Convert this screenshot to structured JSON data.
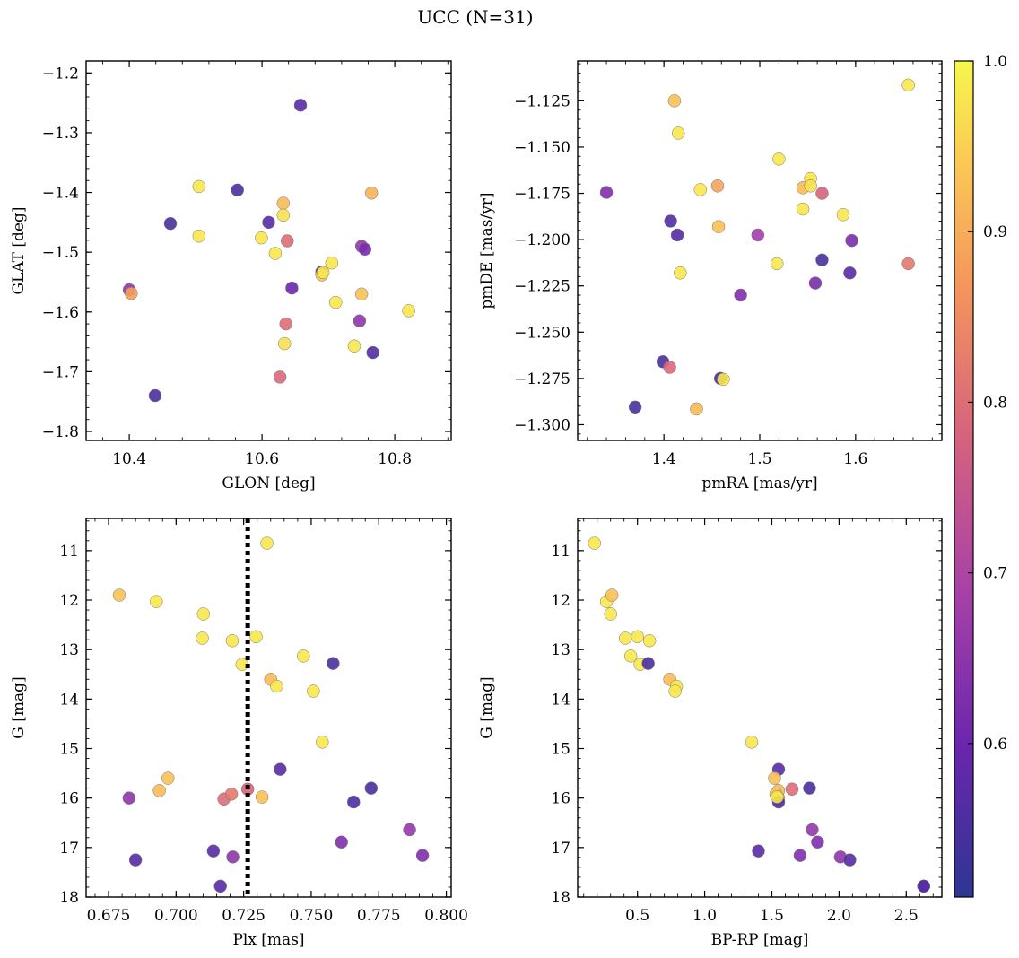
{
  "title": "UCC (N=31)",
  "colorbar": {
    "range": [
      0.51,
      1.0
    ],
    "ticks": [
      0.6,
      0.7,
      0.8,
      0.9,
      1.0
    ],
    "tick_labels": [
      "0.6",
      "0.7",
      "0.8",
      "0.9",
      "1.0"
    ],
    "colormap": "plasma"
  },
  "chart_data": [
    {
      "type": "scatter",
      "name": "glon-glat",
      "xlabel": "GLON [deg]",
      "ylabel": "GLAT [deg]",
      "xlim": [
        10.335,
        10.885
      ],
      "ylim": [
        -1.815,
        -1.18
      ],
      "xticks": [
        10.4,
        10.6,
        10.8
      ],
      "xtick_labels": [
        "10.4",
        "10.6",
        "10.8"
      ],
      "yticks": [
        -1.8,
        -1.7,
        -1.6,
        -1.5,
        -1.4,
        -1.3,
        -1.2
      ],
      "ytick_labels": [
        "−1.8",
        "−1.7",
        "−1.6",
        "−1.5",
        "−1.4",
        "−1.3",
        "−1.2"
      ],
      "points": [
        {
          "x": 10.658,
          "y": -1.254,
          "c": 0.57
        },
        {
          "x": 10.563,
          "y": -1.396,
          "c": 0.55
        },
        {
          "x": 10.462,
          "y": -1.452,
          "c": 0.55
        },
        {
          "x": 10.61,
          "y": -1.45,
          "c": 0.57
        },
        {
          "x": 10.439,
          "y": -1.74,
          "c": 0.55
        },
        {
          "x": 10.4,
          "y": -1.563,
          "c": 0.65
        },
        {
          "x": 10.403,
          "y": -1.569,
          "c": 0.88
        },
        {
          "x": 10.505,
          "y": -1.39,
          "c": 0.98
        },
        {
          "x": 10.505,
          "y": -1.473,
          "c": 0.98
        },
        {
          "x": 10.599,
          "y": -1.476,
          "c": 0.98
        },
        {
          "x": 10.62,
          "y": -1.502,
          "c": 0.98
        },
        {
          "x": 10.632,
          "y": -1.418,
          "c": 0.92
        },
        {
          "x": 10.632,
          "y": -1.438,
          "c": 0.97
        },
        {
          "x": 10.638,
          "y": -1.481,
          "c": 0.8
        },
        {
          "x": 10.645,
          "y": -1.56,
          "c": 0.6
        },
        {
          "x": 10.636,
          "y": -1.62,
          "c": 0.8
        },
        {
          "x": 10.634,
          "y": -1.653,
          "c": 0.97
        },
        {
          "x": 10.627,
          "y": -1.709,
          "c": 0.79
        },
        {
          "x": 10.69,
          "y": -1.533,
          "c": 0.55
        },
        {
          "x": 10.69,
          "y": -1.538,
          "c": 0.93
        },
        {
          "x": 10.692,
          "y": -1.534,
          "c": 0.98
        },
        {
          "x": 10.705,
          "y": -1.518,
          "c": 0.98
        },
        {
          "x": 10.711,
          "y": -1.584,
          "c": 0.98
        },
        {
          "x": 10.75,
          "y": -1.49,
          "c": 0.66
        },
        {
          "x": 10.755,
          "y": -1.495,
          "c": 0.62
        },
        {
          "x": 10.75,
          "y": -1.57,
          "c": 0.93
        },
        {
          "x": 10.747,
          "y": -1.615,
          "c": 0.65
        },
        {
          "x": 10.739,
          "y": -1.657,
          "c": 0.98
        },
        {
          "x": 10.767,
          "y": -1.668,
          "c": 0.56
        },
        {
          "x": 10.765,
          "y": -1.401,
          "c": 0.91
        },
        {
          "x": 10.821,
          "y": -1.598,
          "c": 0.98
        }
      ]
    },
    {
      "type": "scatter",
      "name": "pmra-pmde",
      "xlabel": "pmRA [mas/yr]",
      "ylabel": "pmDE [mas/yr]",
      "xlim": [
        1.31,
        1.69
      ],
      "ylim": [
        -1.3085,
        -1.1035
      ],
      "xticks": [
        1.4,
        1.5,
        1.6
      ],
      "xtick_labels": [
        "1.4",
        "1.5",
        "1.6"
      ],
      "yticks": [
        -1.3,
        -1.275,
        -1.25,
        -1.225,
        -1.2,
        -1.175,
        -1.15,
        -1.125
      ],
      "ytick_labels": [
        "−1.300",
        "−1.275",
        "−1.250",
        "−1.225",
        "−1.200",
        "−1.175",
        "−1.150",
        "−1.125"
      ],
      "points": [
        {
          "x": 1.34,
          "y": -1.1745,
          "c": 0.63
        },
        {
          "x": 1.411,
          "y": -1.125,
          "c": 0.93
        },
        {
          "x": 1.415,
          "y": -1.1425,
          "c": 0.98
        },
        {
          "x": 1.407,
          "y": -1.19,
          "c": 0.56
        },
        {
          "x": 1.414,
          "y": -1.1975,
          "c": 0.57
        },
        {
          "x": 1.417,
          "y": -1.218,
          "c": 0.98
        },
        {
          "x": 1.438,
          "y": -1.173,
          "c": 0.98
        },
        {
          "x": 1.456,
          "y": -1.171,
          "c": 0.89
        },
        {
          "x": 1.457,
          "y": -1.193,
          "c": 0.93
        },
        {
          "x": 1.399,
          "y": -1.266,
          "c": 0.55
        },
        {
          "x": 1.406,
          "y": -1.269,
          "c": 0.79
        },
        {
          "x": 1.37,
          "y": -1.2905,
          "c": 0.55
        },
        {
          "x": 1.434,
          "y": -1.2915,
          "c": 0.92
        },
        {
          "x": 1.459,
          "y": -1.275,
          "c": 0.55
        },
        {
          "x": 1.462,
          "y": -1.2755,
          "c": 0.98
        },
        {
          "x": 1.48,
          "y": -1.23,
          "c": 0.63
        },
        {
          "x": 1.498,
          "y": -1.1975,
          "c": 0.68
        },
        {
          "x": 1.52,
          "y": -1.1565,
          "c": 0.98
        },
        {
          "x": 1.518,
          "y": -1.213,
          "c": 0.98
        },
        {
          "x": 1.545,
          "y": -1.172,
          "c": 0.92
        },
        {
          "x": 1.545,
          "y": -1.1835,
          "c": 0.98
        },
        {
          "x": 1.553,
          "y": -1.167,
          "c": 0.98
        },
        {
          "x": 1.553,
          "y": -1.171,
          "c": 0.97
        },
        {
          "x": 1.565,
          "y": -1.175,
          "c": 0.78
        },
        {
          "x": 1.565,
          "y": -1.211,
          "c": 0.55
        },
        {
          "x": 1.558,
          "y": -1.2235,
          "c": 0.62
        },
        {
          "x": 1.587,
          "y": -1.1865,
          "c": 0.98
        },
        {
          "x": 1.596,
          "y": -1.2005,
          "c": 0.62
        },
        {
          "x": 1.594,
          "y": -1.218,
          "c": 0.57
        },
        {
          "x": 1.655,
          "y": -1.213,
          "c": 0.82
        },
        {
          "x": 1.655,
          "y": -1.1165,
          "c": 0.98
        }
      ]
    },
    {
      "type": "scatter",
      "name": "plx-g",
      "xlabel": "Plx [mas]",
      "ylabel": "G [mag]",
      "xlim": [
        0.6667,
        0.8018
      ],
      "ylim": [
        18.0,
        10.35
      ],
      "invert_y": true,
      "vline": 0.7265,
      "xticks": [
        0.675,
        0.7,
        0.725,
        0.75,
        0.775,
        0.8
      ],
      "xtick_labels": [
        "0.675",
        "0.700",
        "0.725",
        "0.750",
        "0.775",
        "0.800"
      ],
      "yticks": [
        11,
        12,
        13,
        14,
        15,
        16,
        17,
        18
      ],
      "ytick_labels": [
        "11",
        "12",
        "13",
        "14",
        "15",
        "16",
        "17",
        "18"
      ],
      "points": [
        {
          "x": 0.679,
          "y": 11.9,
          "c": 0.93
        },
        {
          "x": 0.6927,
          "y": 12.03,
          "c": 0.98
        },
        {
          "x": 0.7101,
          "y": 12.28,
          "c": 0.98
        },
        {
          "x": 0.7097,
          "y": 12.77,
          "c": 0.98
        },
        {
          "x": 0.7208,
          "y": 12.82,
          "c": 0.98
        },
        {
          "x": 0.7244,
          "y": 13.3,
          "c": 0.98
        },
        {
          "x": 0.7296,
          "y": 12.74,
          "c": 0.98
        },
        {
          "x": 0.7336,
          "y": 10.85,
          "c": 0.98
        },
        {
          "x": 0.735,
          "y": 13.6,
          "c": 0.92
        },
        {
          "x": 0.7372,
          "y": 13.74,
          "c": 0.98
        },
        {
          "x": 0.7471,
          "y": 13.13,
          "c": 0.98
        },
        {
          "x": 0.7508,
          "y": 13.84,
          "c": 0.98
        },
        {
          "x": 0.7581,
          "y": 13.28,
          "c": 0.55
        },
        {
          "x": 0.7541,
          "y": 14.87,
          "c": 0.98
        },
        {
          "x": 0.7385,
          "y": 15.42,
          "c": 0.57
        },
        {
          "x": 0.697,
          "y": 15.6,
          "c": 0.93
        },
        {
          "x": 0.6938,
          "y": 15.85,
          "c": 0.92
        },
        {
          "x": 0.6826,
          "y": 16.0,
          "c": 0.65
        },
        {
          "x": 0.7177,
          "y": 16.02,
          "c": 0.8
        },
        {
          "x": 0.7205,
          "y": 15.92,
          "c": 0.82
        },
        {
          "x": 0.7265,
          "y": 15.82,
          "c": 0.78
        },
        {
          "x": 0.7318,
          "y": 15.98,
          "c": 0.93
        },
        {
          "x": 0.7138,
          "y": 17.07,
          "c": 0.57
        },
        {
          "x": 0.721,
          "y": 17.19,
          "c": 0.65
        },
        {
          "x": 0.685,
          "y": 17.25,
          "c": 0.57
        },
        {
          "x": 0.7164,
          "y": 17.78,
          "c": 0.57
        },
        {
          "x": 0.7612,
          "y": 16.89,
          "c": 0.63
        },
        {
          "x": 0.7657,
          "y": 16.08,
          "c": 0.55
        },
        {
          "x": 0.7722,
          "y": 15.8,
          "c": 0.55
        },
        {
          "x": 0.7864,
          "y": 16.64,
          "c": 0.66
        },
        {
          "x": 0.7912,
          "y": 17.16,
          "c": 0.63
        }
      ]
    },
    {
      "type": "scatter",
      "name": "bprp-g",
      "xlabel": "BP-RP [mag]",
      "ylabel": "G [mag]",
      "xlim": [
        0.055,
        2.765
      ],
      "ylim": [
        18.0,
        10.35
      ],
      "invert_y": true,
      "xticks": [
        0.5,
        1.0,
        1.5,
        2.0,
        2.5
      ],
      "xtick_labels": [
        "0.5",
        "1.0",
        "1.5",
        "2.0",
        "2.5"
      ],
      "yticks": [
        11,
        12,
        13,
        14,
        15,
        16,
        17,
        18
      ],
      "ytick_labels": [
        "11",
        "12",
        "13",
        "14",
        "15",
        "16",
        "17",
        "18"
      ],
      "points": [
        {
          "x": 0.18,
          "y": 10.85,
          "c": 0.98
        },
        {
          "x": 0.27,
          "y": 12.03,
          "c": 0.98
        },
        {
          "x": 0.31,
          "y": 11.9,
          "c": 0.93
        },
        {
          "x": 0.3,
          "y": 12.28,
          "c": 0.98
        },
        {
          "x": 0.41,
          "y": 12.77,
          "c": 0.98
        },
        {
          "x": 0.5,
          "y": 12.74,
          "c": 0.98
        },
        {
          "x": 0.59,
          "y": 12.82,
          "c": 0.98
        },
        {
          "x": 0.45,
          "y": 13.13,
          "c": 0.98
        },
        {
          "x": 0.52,
          "y": 13.3,
          "c": 0.98
        },
        {
          "x": 0.58,
          "y": 13.28,
          "c": 0.55
        },
        {
          "x": 0.74,
          "y": 13.6,
          "c": 0.92
        },
        {
          "x": 0.79,
          "y": 13.74,
          "c": 0.98
        },
        {
          "x": 0.78,
          "y": 13.84,
          "c": 0.98
        },
        {
          "x": 1.35,
          "y": 14.87,
          "c": 0.98
        },
        {
          "x": 1.55,
          "y": 15.42,
          "c": 0.57
        },
        {
          "x": 1.52,
          "y": 15.6,
          "c": 0.93
        },
        {
          "x": 1.55,
          "y": 15.85,
          "c": 0.92
        },
        {
          "x": 1.65,
          "y": 15.82,
          "c": 0.8
        },
        {
          "x": 1.53,
          "y": 15.92,
          "c": 0.93
        },
        {
          "x": 1.55,
          "y": 16.0,
          "c": 0.93
        },
        {
          "x": 1.55,
          "y": 16.08,
          "c": 0.55
        },
        {
          "x": 1.54,
          "y": 15.98,
          "c": 0.98
        },
        {
          "x": 1.78,
          "y": 15.8,
          "c": 0.55
        },
        {
          "x": 1.4,
          "y": 17.07,
          "c": 0.57
        },
        {
          "x": 1.8,
          "y": 16.64,
          "c": 0.66
        },
        {
          "x": 1.84,
          "y": 16.89,
          "c": 0.63
        },
        {
          "x": 1.71,
          "y": 17.16,
          "c": 0.63
        },
        {
          "x": 2.01,
          "y": 17.19,
          "c": 0.65
        },
        {
          "x": 2.08,
          "y": 17.25,
          "c": 0.57
        },
        {
          "x": 2.63,
          "y": 17.78,
          "c": 0.57
        },
        {
          "x": 2.63,
          "y": 17.78,
          "c": 0.57
        }
      ]
    }
  ]
}
